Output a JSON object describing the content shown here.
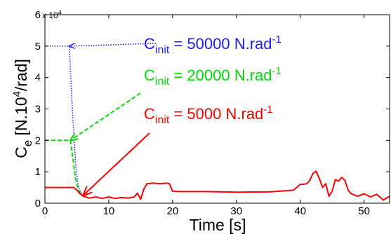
{
  "chart_data": {
    "type": "line",
    "title": "",
    "xlabel": "Time [s]",
    "ylabel": {
      "main": "C",
      "sub": "e",
      "unit_pre": " [N.10",
      "unit_sup": "4",
      "unit_post": "/rad]"
    },
    "y_exponent": {
      "base": "x 10",
      "power": "4"
    },
    "xlim": [
      0,
      54
    ],
    "ylim": [
      0,
      6
    ],
    "x_ticks": [
      0,
      10,
      20,
      30,
      40,
      50
    ],
    "y_ticks": [
      0,
      1,
      2,
      3,
      4,
      5,
      6
    ],
    "grid": false,
    "colors": {
      "blue": "#1a1aff",
      "green": "#00dd00",
      "red": "#ff0000",
      "axis": "#000000"
    },
    "series": [
      {
        "color": "#1a1aff",
        "dash": "dotted",
        "x": [
          0,
          3.8,
          4.0,
          4.4,
          4.8,
          5.1,
          5.4,
          5.7,
          6.0
        ],
        "y": [
          5.0,
          5.0,
          4.2,
          2.6,
          1.3,
          0.7,
          0.45,
          0.32,
          0.27
        ]
      },
      {
        "color": "#00dd00",
        "dash": "dashed",
        "x": [
          0,
          4.0,
          4.4,
          4.8,
          5.2,
          5.6,
          6.0
        ],
        "y": [
          2.0,
          2.0,
          1.4,
          0.8,
          0.45,
          0.3,
          0.25
        ]
      },
      {
        "color": "#ff0000",
        "dash": "solid",
        "x": [
          0,
          4.5,
          5.0,
          5.5,
          6.0,
          7,
          8,
          9,
          10,
          11,
          12,
          13,
          14,
          14.5,
          15,
          15.5,
          16,
          17,
          18,
          19,
          19.5,
          20,
          21,
          25,
          30,
          35,
          38,
          39,
          40,
          40.5,
          41,
          41.5,
          42,
          42.5,
          43,
          43.5,
          44,
          44.5,
          45,
          45.5,
          46,
          46.5,
          47,
          47.5,
          48,
          49,
          50,
          51,
          52,
          53,
          54
        ],
        "y": [
          0.5,
          0.5,
          0.42,
          0.3,
          0.22,
          0.16,
          0.2,
          0.15,
          0.2,
          0.15,
          0.18,
          0.16,
          0.2,
          0.32,
          0.12,
          0.45,
          0.62,
          0.64,
          0.62,
          0.64,
          0.62,
          0.38,
          0.37,
          0.37,
          0.35,
          0.36,
          0.4,
          0.42,
          0.6,
          0.6,
          0.62,
          0.72,
          0.95,
          1.02,
          0.78,
          0.5,
          0.62,
          0.22,
          0.38,
          0.75,
          0.7,
          0.82,
          0.72,
          0.42,
          0.3,
          0.22,
          0.3,
          0.2,
          0.28,
          0.1,
          0.22
        ]
      }
    ],
    "annotations": [
      {
        "color": "#1a1aff",
        "dash": "dotted",
        "prefix": "C",
        "sub": "init",
        "body": " = 50000 N.rad",
        "sup": "-1",
        "points_to": [
          3.8,
          5.0
        ]
      },
      {
        "color": "#00dd00",
        "dash": "dashed",
        "prefix": "C",
        "sub": "init",
        "body": " = 20000 N.rad",
        "sup": "-1",
        "points_to": [
          4.0,
          2.0
        ]
      },
      {
        "color": "#ff0000",
        "dash": "solid",
        "prefix": "C",
        "sub": "init",
        "body": " = 5000 N.rad",
        "sup": "-1",
        "points_to": [
          6.0,
          0.25
        ]
      }
    ]
  }
}
